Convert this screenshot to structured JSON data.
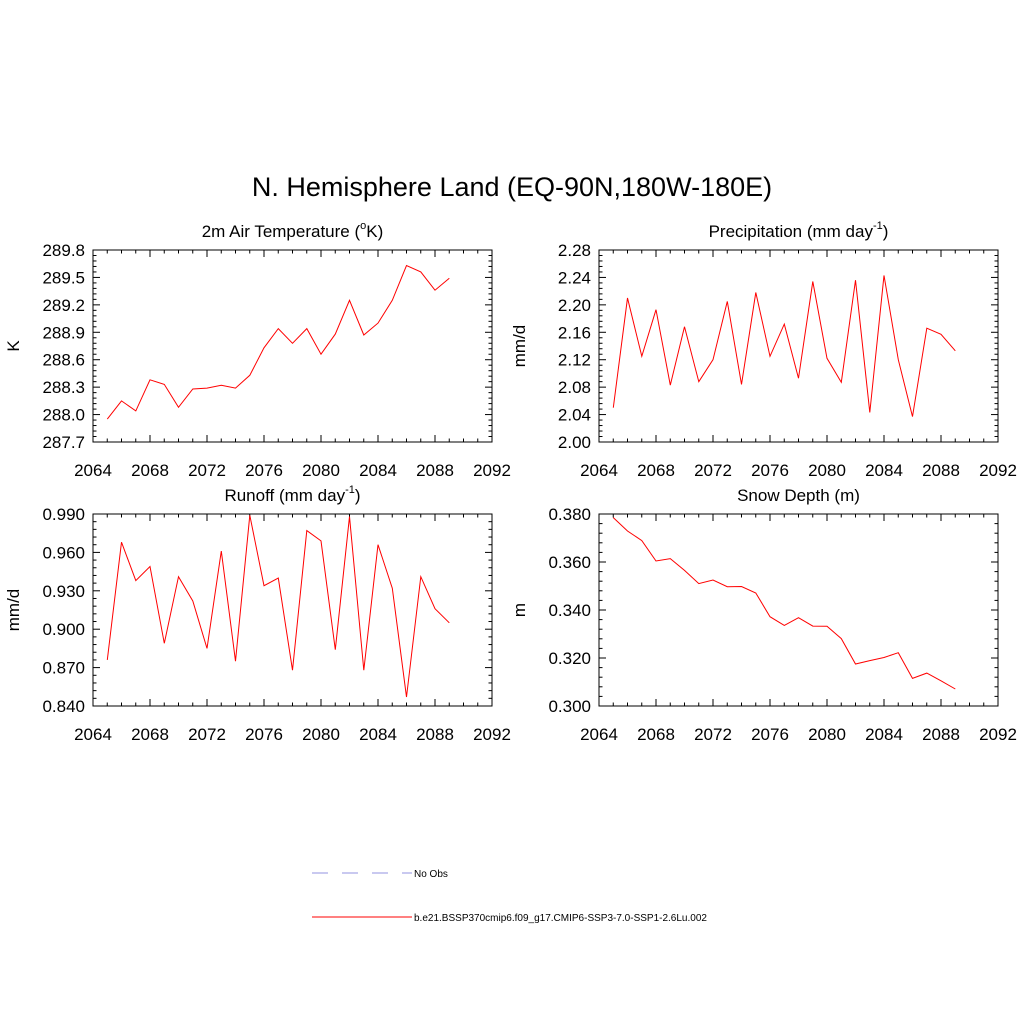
{
  "page": {
    "title": "N. Hemisphere Land (EQ-90N,180W-180E)"
  },
  "colors": {
    "series": "#ff0000",
    "obs": "#a9a9e8",
    "axis": "#000000"
  },
  "legend": [
    {
      "label": "No Obs",
      "style": "dashed",
      "color": "#a9a9e8"
    },
    {
      "label": "b.e21.BSSP370cmip6.f09_g17.CMIP6-SSP3-7.0-SSP1-2.6Lu.002",
      "style": "solid",
      "color": "#ff0000"
    }
  ],
  "chart_data": [
    {
      "type": "line",
      "title": "2m Air Temperature (",
      "title_sup": "o",
      "title_after": "K)",
      "ylabel": "K",
      "xlim": [
        2064,
        2092
      ],
      "ylim": [
        287.7,
        289.8
      ],
      "xticks": [
        "2064",
        "2068",
        "2072",
        "2076",
        "2080",
        "2084",
        "2088",
        "2092"
      ],
      "yticks": [
        "287.7",
        "288.0",
        "288.3",
        "288.6",
        "288.9",
        "289.2",
        "289.5",
        "289.8"
      ],
      "series": [
        {
          "x": [
            2065,
            2066,
            2067,
            2068,
            2069,
            2070,
            2071,
            2072,
            2073,
            2074,
            2075,
            2076,
            2077,
            2078,
            2079,
            2080,
            2081,
            2082,
            2083,
            2084,
            2085,
            2086,
            2087,
            2088,
            2089
          ],
          "values": [
            287.95,
            288.15,
            288.04,
            288.38,
            288.33,
            288.08,
            288.28,
            288.29,
            288.32,
            288.29,
            288.43,
            288.73,
            288.94,
            288.78,
            288.94,
            288.66,
            288.88,
            289.25,
            288.87,
            289.0,
            289.25,
            289.63,
            289.56,
            289.36,
            289.49
          ]
        }
      ]
    },
    {
      "type": "line",
      "title": "Precipitation (mm day",
      "title_sup": "-1",
      "title_after": ")",
      "ylabel": "mm/d",
      "xlim": [
        2064,
        2092
      ],
      "ylim": [
        2.0,
        2.28
      ],
      "xticks": [
        "2064",
        "2068",
        "2072",
        "2076",
        "2080",
        "2084",
        "2088",
        "2092"
      ],
      "yticks": [
        "2.00",
        "2.04",
        "2.08",
        "2.12",
        "2.16",
        "2.20",
        "2.24",
        "2.28"
      ],
      "series": [
        {
          "x": [
            2065,
            2066,
            2067,
            2068,
            2069,
            2070,
            2071,
            2072,
            2073,
            2074,
            2075,
            2076,
            2077,
            2078,
            2079,
            2080,
            2081,
            2082,
            2083,
            2084,
            2085,
            2086,
            2087,
            2088,
            2089
          ],
          "values": [
            2.05,
            2.21,
            2.125,
            2.193,
            2.083,
            2.168,
            2.088,
            2.12,
            2.205,
            2.084,
            2.218,
            2.125,
            2.172,
            2.093,
            2.234,
            2.122,
            2.087,
            2.236,
            2.043,
            2.243,
            2.12,
            2.037,
            2.166,
            2.157,
            2.133
          ]
        }
      ]
    },
    {
      "type": "line",
      "title": "Runoff (mm day",
      "title_sup": "-1",
      "title_after": ")",
      "ylabel": "mm/d",
      "xlim": [
        2064,
        2092
      ],
      "ylim": [
        0.84,
        0.99
      ],
      "xticks": [
        "2064",
        "2068",
        "2072",
        "2076",
        "2080",
        "2084",
        "2088",
        "2092"
      ],
      "yticks": [
        "0.840",
        "0.870",
        "0.900",
        "0.930",
        "0.960",
        "0.990"
      ],
      "series": [
        {
          "x": [
            2065,
            2066,
            2067,
            2068,
            2069,
            2070,
            2071,
            2072,
            2073,
            2074,
            2075,
            2076,
            2077,
            2078,
            2079,
            2080,
            2081,
            2082,
            2083,
            2084,
            2085,
            2086,
            2087,
            2088,
            2089
          ],
          "values": [
            0.876,
            0.968,
            0.938,
            0.949,
            0.889,
            0.941,
            0.922,
            0.885,
            0.961,
            0.875,
            0.989,
            0.934,
            0.94,
            0.868,
            0.977,
            0.969,
            0.884,
            0.988,
            0.868,
            0.966,
            0.932,
            0.847,
            0.941,
            0.916,
            0.905
          ]
        }
      ]
    },
    {
      "type": "line",
      "title": "Snow Depth (m)",
      "title_sup": "",
      "title_after": "",
      "ylabel": "m",
      "xlim": [
        2064,
        2092
      ],
      "ylim": [
        0.3,
        0.38
      ],
      "xticks": [
        "2064",
        "2068",
        "2072",
        "2076",
        "2080",
        "2084",
        "2088",
        "2092"
      ],
      "yticks": [
        "0.300",
        "0.320",
        "0.340",
        "0.360",
        "0.380"
      ],
      "series": [
        {
          "x": [
            2065,
            2066,
            2067,
            2068,
            2069,
            2070,
            2071,
            2072,
            2073,
            2074,
            2075,
            2076,
            2077,
            2078,
            2079,
            2080,
            2081,
            2082,
            2083,
            2084,
            2085,
            2086,
            2087,
            2088,
            2089
          ],
          "values": [
            0.3785,
            0.3729,
            0.3689,
            0.3604,
            0.3614,
            0.3565,
            0.351,
            0.3525,
            0.3497,
            0.3498,
            0.3471,
            0.3372,
            0.3336,
            0.3368,
            0.3333,
            0.3332,
            0.3281,
            0.3175,
            0.3189,
            0.3202,
            0.3222,
            0.3115,
            0.3137,
            0.3105,
            0.3071
          ]
        }
      ]
    }
  ]
}
